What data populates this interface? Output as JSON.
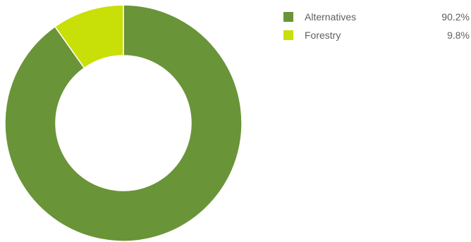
{
  "chart_data": {
    "type": "pie",
    "donut": true,
    "title": "",
    "series": [
      {
        "name": "Alternatives",
        "value": 90.2,
        "label": "90.2%",
        "color": "#6a9438"
      },
      {
        "name": "Forestry",
        "value": 9.8,
        "label": "9.8%",
        "color": "#c8df08"
      }
    ],
    "legend": {
      "position": "top-right",
      "items": [
        {
          "label": "Alternatives",
          "value": "90.2%",
          "color": "#6a9438"
        },
        {
          "label": "Forestry",
          "value": "9.8%",
          "color": "#c8df08"
        }
      ]
    }
  }
}
